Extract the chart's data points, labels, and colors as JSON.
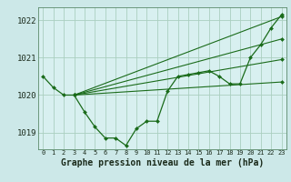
{
  "bg_color": "#cce8e8",
  "plot_bg_color": "#d8f0f0",
  "grid_color": "#aacfbf",
  "line_color": "#1a6b1a",
  "marker_color": "#1a6b1a",
  "xlabel": "Graphe pression niveau de la mer (hPa)",
  "xlabel_fontsize": 7.0,
  "ytick_fontsize": 6.5,
  "xtick_fontsize": 5.0,
  "yticks": [
    1019,
    1020,
    1021,
    1022
  ],
  "xticks": [
    0,
    1,
    2,
    3,
    4,
    5,
    6,
    7,
    8,
    9,
    10,
    11,
    12,
    13,
    14,
    15,
    16,
    17,
    18,
    19,
    20,
    21,
    22,
    23
  ],
  "ylim": [
    1018.55,
    1022.35
  ],
  "xlim": [
    -0.5,
    23.5
  ],
  "series": [
    {
      "x": [
        0,
        1,
        2,
        3,
        4,
        5,
        6,
        7,
        8,
        9,
        10,
        11,
        12,
        13,
        14,
        15,
        16,
        17,
        18,
        19,
        20,
        21,
        22,
        23
      ],
      "y": [
        1020.5,
        1020.2,
        1020.0,
        1020.0,
        1019.55,
        1019.15,
        1018.85,
        1018.85,
        1018.65,
        1019.1,
        1019.3,
        1019.3,
        1020.1,
        1020.5,
        1020.55,
        1020.6,
        1020.65,
        1020.5,
        1020.3,
        1020.3,
        1021.0,
        1021.35,
        1021.8,
        1022.15
      ],
      "linestyle": "-",
      "linewidth": 0.9,
      "marker": "D",
      "markersize": 2.0,
      "has_marker": true
    },
    {
      "x": [
        3,
        23
      ],
      "y": [
        1020.0,
        1022.1
      ],
      "linestyle": "-",
      "linewidth": 0.8,
      "marker": "D",
      "markersize": 2.0,
      "has_marker": true
    },
    {
      "x": [
        3,
        23
      ],
      "y": [
        1020.0,
        1021.5
      ],
      "linestyle": "-",
      "linewidth": 0.8,
      "marker": "D",
      "markersize": 2.0,
      "has_marker": true
    },
    {
      "x": [
        3,
        23
      ],
      "y": [
        1020.0,
        1020.95
      ],
      "linestyle": "-",
      "linewidth": 0.8,
      "marker": "D",
      "markersize": 2.0,
      "has_marker": true
    },
    {
      "x": [
        3,
        23
      ],
      "y": [
        1020.0,
        1020.35
      ],
      "linestyle": "-",
      "linewidth": 0.8,
      "marker": "D",
      "markersize": 2.0,
      "has_marker": true
    }
  ]
}
